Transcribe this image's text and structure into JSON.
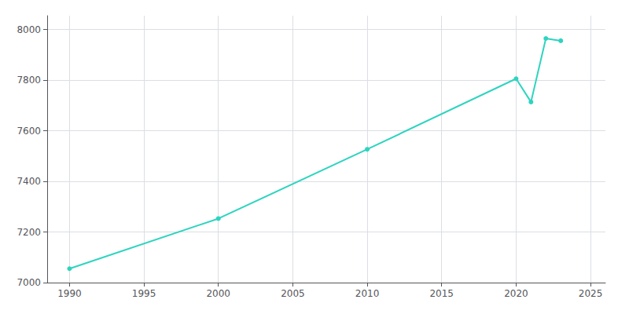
{
  "chart_data": {
    "type": "line",
    "x": [
      1990,
      2000,
      2010,
      2020,
      2021,
      2022,
      2023
    ],
    "values": [
      7055,
      7253,
      7527,
      7806,
      7714,
      7965,
      7956
    ],
    "color": "#2dd4bf",
    "marker": "circle",
    "xlim": [
      1988.5,
      2026
    ],
    "ylim": [
      7000,
      8055
    ],
    "xticks": [
      1990,
      1995,
      2000,
      2005,
      2010,
      2015,
      2020,
      2025
    ],
    "yticks": [
      7000,
      7200,
      7400,
      7600,
      7800,
      8000
    ],
    "grid": true
  }
}
